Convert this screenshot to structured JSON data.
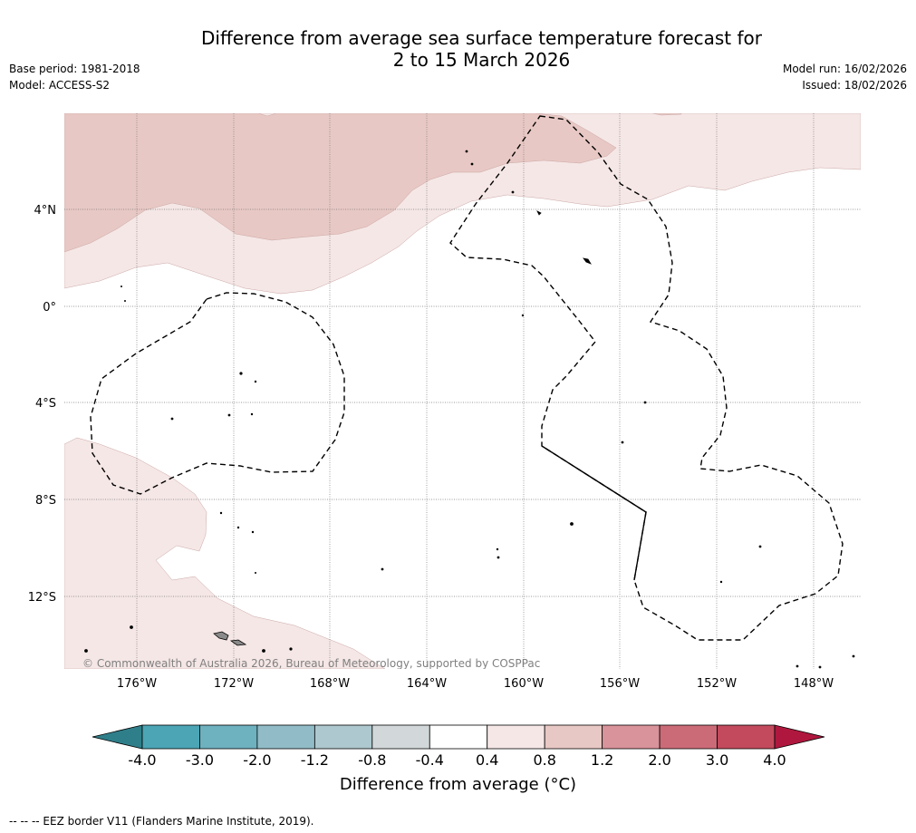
{
  "header": {
    "title_line1": "Difference from average sea surface temperature forecast for",
    "title_line2": "2 to 15 March 2026",
    "base_period": "Base period: 1981-2018",
    "model": "Model: ACCESS-S2",
    "model_run": "Model run: 16/02/2026",
    "issued": "Issued: 18/02/2026"
  },
  "map": {
    "lat_labels": [
      "4°N",
      "0°",
      "4°S",
      "8°S",
      "12°S"
    ],
    "lon_labels": [
      "176°W",
      "172°W",
      "168°W",
      "164°W",
      "160°W",
      "156°W",
      "152°W",
      "148°W"
    ],
    "copyright": "© Commonwealth of Australia 2026, Bureau of Meteorology, supported by COSPPac"
  },
  "colorbar": {
    "title": "Difference from average (°C)",
    "ticks": [
      "-4.0",
      "-3.0",
      "-2.0",
      "-1.2",
      "-0.8",
      "-0.4",
      "0.4",
      "0.8",
      "1.2",
      "2.0",
      "3.0",
      "4.0"
    ],
    "colors": [
      "#2f7f8a",
      "#4ba5b5",
      "#6eb1bf",
      "#91bcc7",
      "#adc8ce",
      "#d2d8d9",
      "#ffffff",
      "#f5e7e6",
      "#e8c8c4",
      "#d9939a",
      "#cc6b78",
      "#c24a5c",
      "#b0173e"
    ]
  },
  "footer": {
    "eez_note": "--  --  -- EEZ border V11 (Flanders Marine Institute, 2019)."
  }
}
